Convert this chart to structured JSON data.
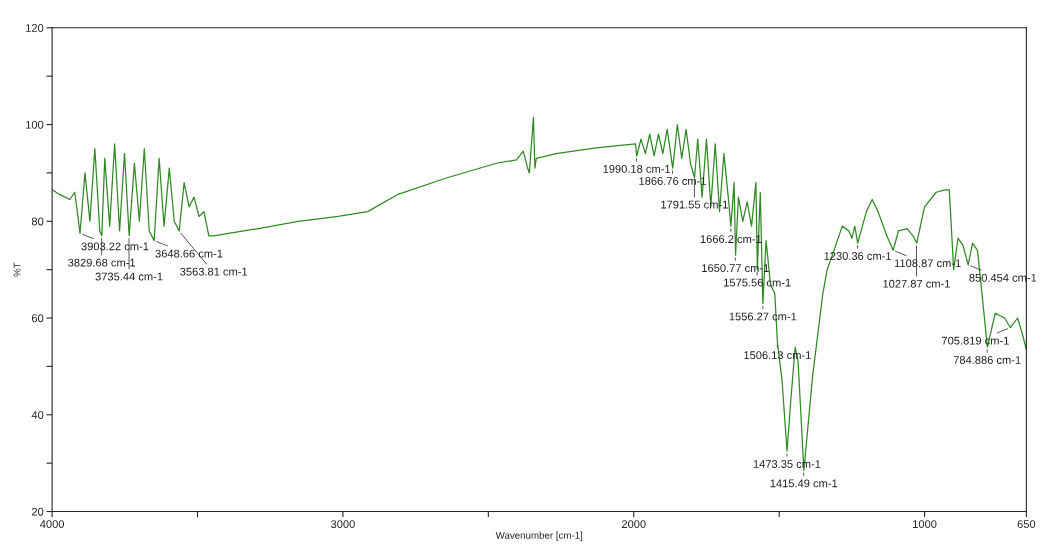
{
  "chart_data": {
    "type": "line",
    "xlabel": "Wavenumber [cm-1]",
    "ylabel": "%T",
    "xlim": [
      4000,
      650
    ],
    "ylim": [
      20,
      120
    ],
    "xticks": [
      4000,
      {
        "value": 3500,
        "label": null
      },
      3000,
      {
        "value": 2500,
        "label": null
      },
      2000,
      {
        "value": 1500,
        "label": null
      },
      1000,
      650
    ],
    "yticks": [
      20,
      {
        "value": 30,
        "label": null
      },
      40,
      {
        "value": 50,
        "label": null
      },
      60,
      {
        "value": 70,
        "label": null
      },
      80,
      {
        "value": 90,
        "label": null
      },
      100,
      {
        "value": 110,
        "label": null
      },
      120
    ],
    "grid": false,
    "series": [
      {
        "color": "#2e8b22",
        "x": [
          4000,
          3973,
          3939,
          3922,
          3904,
          3887,
          3870,
          3853,
          3836,
          3829,
          3819,
          3802,
          3785,
          3768,
          3751,
          3735,
          3717,
          3700,
          3683,
          3666,
          3649,
          3632,
          3615,
          3597,
          3580,
          3563,
          3546,
          3529,
          3512,
          3495,
          3478,
          3461,
          3444,
          3393,
          3290,
          3154,
          3017,
          2915,
          2813,
          2642,
          2472,
          2403,
          2380,
          2365,
          2359,
          2345,
          2340,
          2335,
          2267,
          2130,
          1994,
          1990,
          1975,
          1960,
          1945,
          1930,
          1915,
          1900,
          1885,
          1866,
          1850,
          1835,
          1820,
          1805,
          1791,
          1780,
          1765,
          1750,
          1735,
          1720,
          1705,
          1690,
          1675,
          1666,
          1655,
          1650,
          1640,
          1625,
          1610,
          1595,
          1580,
          1575,
          1565,
          1556,
          1545,
          1530,
          1515,
          1506,
          1490,
          1473,
          1460,
          1445,
          1435,
          1415,
          1385,
          1350,
          1335,
          1317,
          1283,
          1260,
          1250,
          1240,
          1230,
          1200,
          1180,
          1160,
          1130,
          1108,
          1090,
          1060,
          1040,
          1027,
          1000,
          960,
          930,
          915,
          900,
          885,
          868,
          850,
          835,
          818,
          784,
          757,
          725,
          705,
          680,
          665,
          650
        ],
        "values": [
          86.5,
          85.5,
          84.5,
          86,
          77.5,
          90,
          80,
          95,
          78,
          77,
          93,
          79,
          96,
          78,
          94,
          77,
          92,
          80,
          95,
          78,
          76,
          93,
          79,
          91,
          80,
          78,
          88,
          83,
          85,
          81,
          82,
          77,
          77,
          77.5,
          78.5,
          80,
          81,
          82,
          85.5,
          89,
          92,
          92.7,
          94.5,
          91,
          90,
          101.5,
          91,
          93,
          94,
          95.2,
          96,
          93.5,
          97,
          94,
          98,
          93.5,
          98,
          94,
          99,
          91,
          100,
          93,
          99,
          92,
          89,
          97,
          85,
          97,
          83,
          96,
          82,
          94,
          85,
          79,
          88,
          73,
          85,
          80,
          84,
          79,
          88,
          70,
          86,
          63,
          76,
          67,
          65,
          55,
          47,
          32.5,
          43,
          54,
          51,
          28.5,
          48,
          65,
          70,
          73,
          79,
          78,
          76.5,
          79,
          75.5,
          82,
          84.5,
          82,
          77,
          74,
          78,
          78.5,
          77,
          75.5,
          83,
          86,
          86.5,
          86.5,
          70,
          76.5,
          75,
          71,
          75.5,
          74,
          54,
          61,
          60,
          58,
          60,
          57,
          53.5
        ]
      }
    ],
    "annotations": [
      {
        "text": "3903.22 cm-1",
        "x": 3903.22,
        "y": 77.5
      },
      {
        "text": "3829.68 cm-1",
        "x": 3829.68,
        "y": 77
      },
      {
        "text": "3735.44 cm-1",
        "x": 3735.44,
        "y": 77
      },
      {
        "text": "3648.66 cm-1",
        "x": 3648.66,
        "y": 76
      },
      {
        "text": "3563.81 cm-1",
        "x": 3563.81,
        "y": 78
      },
      {
        "text": "1990.18 cm-1",
        "x": 1990.18,
        "y": 93.5
      },
      {
        "text": "1866.76 cm-1",
        "x": 1866.76,
        "y": 91
      },
      {
        "text": "1791.55 cm-1",
        "x": 1791.55,
        "y": 89
      },
      {
        "text": "1666.2 cm-1",
        "x": 1666.2,
        "y": 79
      },
      {
        "text": "1650.77 cm-1",
        "x": 1650.77,
        "y": 73
      },
      {
        "text": "1575.56 cm-1",
        "x": 1575.56,
        "y": 70
      },
      {
        "text": "1556.27 cm-1",
        "x": 1556.27,
        "y": 63
      },
      {
        "text": "1506.13 cm-1",
        "x": 1506.13,
        "y": 55
      },
      {
        "text": "1473.35 cm-1",
        "x": 1473.35,
        "y": 32.5
      },
      {
        "text": "1415.49 cm-1",
        "x": 1415.49,
        "y": 28.5
      },
      {
        "text": "1230.36 cm-1",
        "x": 1230.36,
        "y": 75.5
      },
      {
        "text": "1108.87 cm-1",
        "x": 1108.87,
        "y": 74
      },
      {
        "text": "1027.87 cm-1",
        "x": 1027.87,
        "y": 75.5
      },
      {
        "text": "850.454 cm-1",
        "x": 850.454,
        "y": 71
      },
      {
        "text": "784.886 cm-1",
        "x": 784.886,
        "y": 54
      },
      {
        "text": "705.819 cm-1",
        "x": 705.819,
        "y": 58
      }
    ]
  }
}
